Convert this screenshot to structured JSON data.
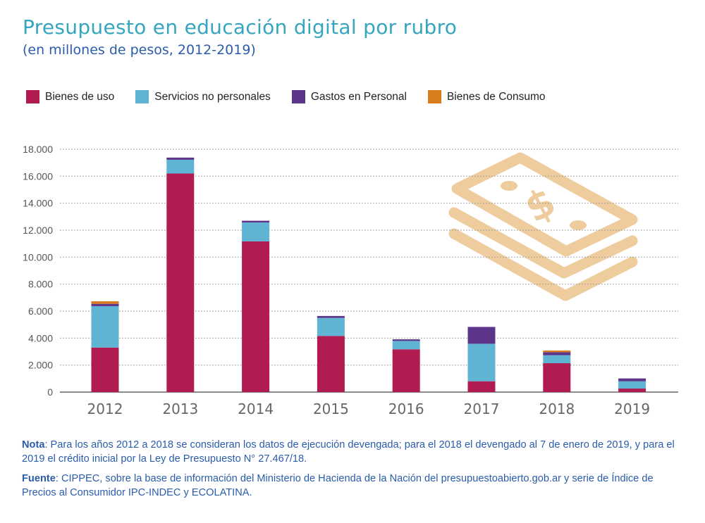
{
  "header": {
    "title": "Presupuesto en educación digital por rubro",
    "subtitle": "(en millones de pesos, 2012-2019)"
  },
  "chart_data": {
    "type": "bar",
    "stacked": true,
    "categories": [
      "2012",
      "2013",
      "2014",
      "2015",
      "2016",
      "2017",
      "2018",
      "2019"
    ],
    "series": [
      {
        "name": "Bienes de uso",
        "color": "#b01c52",
        "values": [
          3300,
          16200,
          11170,
          4160,
          3170,
          800,
          2140,
          260
        ]
      },
      {
        "name": "Servicios no personales",
        "color": "#5fb3d3",
        "values": [
          3070,
          1020,
          1400,
          1340,
          620,
          2780,
          590,
          540
        ]
      },
      {
        "name": "Gastos en Personal",
        "color": "#5c3489",
        "values": [
          170,
          160,
          130,
          140,
          120,
          1250,
          230,
          210
        ]
      },
      {
        "name": "Bienes de Consumo",
        "color": "#d97c1e",
        "values": [
          190,
          0,
          0,
          0,
          0,
          0,
          120,
          0
        ]
      }
    ],
    "ylim": [
      0,
      18000
    ],
    "yticks": [
      "0",
      "2.000",
      "4.000",
      "6.000",
      "8.000",
      "10.000",
      "12.000",
      "14.000",
      "16.000",
      "18.000"
    ],
    "grid": true,
    "legend": "top-left",
    "xlabel": "",
    "ylabel": ""
  },
  "decoration": {
    "icon": "money-bills-icon",
    "color": "#efcc9e"
  },
  "notes": {
    "nota_label": "Nota",
    "nota_text": ": Para los años 2012 a 2018 se consideran los datos de ejecución devengada; para el 2018 el devengado al 7 de enero de 2019, y para el 2019 el crédito inicial por la Ley de Presupuesto N° 27.467/18.",
    "fuente_label": "Fuente",
    "fuente_text": ": CIPPEC, sobre la base de información del Ministerio de Hacienda de la Nación del presupuestoabierto.gob.ar y serie de Índice de Precios al Consumidor IPC-INDEC y ECOLATINA."
  }
}
